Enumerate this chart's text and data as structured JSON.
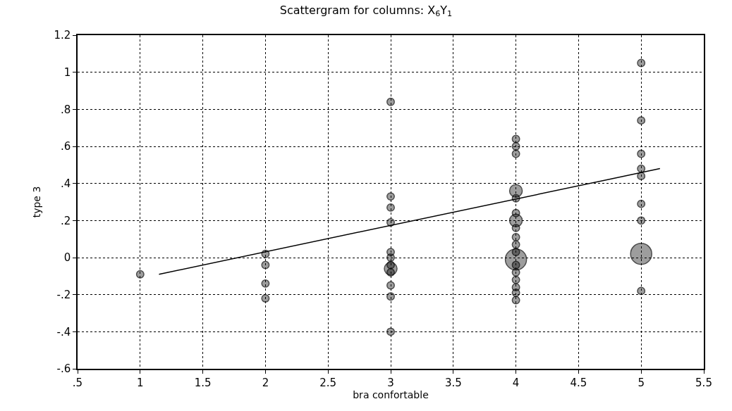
{
  "chart_data": {
    "type": "bubble",
    "title": "Scattergram for columns: X$_{6}$Y$_{1}$",
    "xlabel": "bra confortable",
    "ylabel": "type 3",
    "series": [
      {
        "marker": "circle",
        "color": "#000000",
        "x": [
          1,
          2,
          2,
          2,
          2,
          3,
          3,
          3,
          3,
          3,
          3,
          3,
          3,
          3,
          3,
          3,
          3,
          4,
          4,
          4,
          4,
          4,
          4,
          4,
          4,
          4,
          4,
          4,
          4,
          4,
          4,
          4,
          4,
          4,
          4,
          5,
          5,
          5,
          5,
          5,
          5,
          5,
          5,
          5
        ],
        "values": [
          -0.09,
          0.02,
          -0.04,
          -0.14,
          -0.22,
          0.84,
          0.33,
          0.27,
          0.19,
          0.03,
          0.0,
          -0.04,
          -0.06,
          -0.08,
          -0.15,
          -0.21,
          -0.4,
          0.64,
          0.6,
          0.56,
          0.36,
          0.32,
          0.24,
          0.2,
          0.16,
          0.11,
          0.07,
          0.03,
          -0.01,
          -0.04,
          -0.08,
          -0.12,
          -0.16,
          -0.19,
          -0.23,
          1.05,
          0.74,
          0.56,
          0.48,
          0.44,
          0.29,
          0.2,
          0.02,
          -0.18
        ],
        "sizes": [
          0.12,
          0.12,
          0.12,
          0.12,
          0.12,
          0.12,
          0.12,
          0.12,
          0.12,
          0.12,
          0.12,
          0.12,
          0.36,
          0.12,
          0.12,
          0.12,
          0.12,
          0.12,
          0.12,
          0.12,
          0.36,
          0.12,
          0.12,
          0.36,
          0.12,
          0.12,
          0.12,
          0.12,
          1,
          0.12,
          0.12,
          0.12,
          0.12,
          0.12,
          0.12,
          0.12,
          0.12,
          0.12,
          0.12,
          0.12,
          0.12,
          0.12,
          1,
          0.12
        ]
      },
      {
        "type": "line",
        "color": "#000000",
        "x": [
          1.15,
          5.15
        ],
        "values": [
          -0.09,
          0.48
        ]
      }
    ],
    "xlim": [
      0.5,
      5.5
    ],
    "xticks": [
      {
        "value": 0.5,
        "label": ".5"
      },
      1,
      1.5,
      2,
      2.5,
      3,
      3.5,
      4,
      4.5,
      5,
      5.5
    ],
    "ylim": [
      -0.6,
      1.2
    ],
    "yticks": [
      {
        "value": -0.6,
        "label": "-.6"
      },
      {
        "value": -0.4,
        "label": "-.4"
      },
      {
        "value": -0.2,
        "label": "-.2"
      },
      0,
      {
        "value": 0.2,
        "label": ".2"
      },
      {
        "value": 0.4,
        "label": ".4"
      },
      {
        "value": 0.6,
        "label": ".6"
      },
      {
        "value": 0.8,
        "label": ".8"
      },
      1,
      1.2
    ],
    "grid": true
  }
}
